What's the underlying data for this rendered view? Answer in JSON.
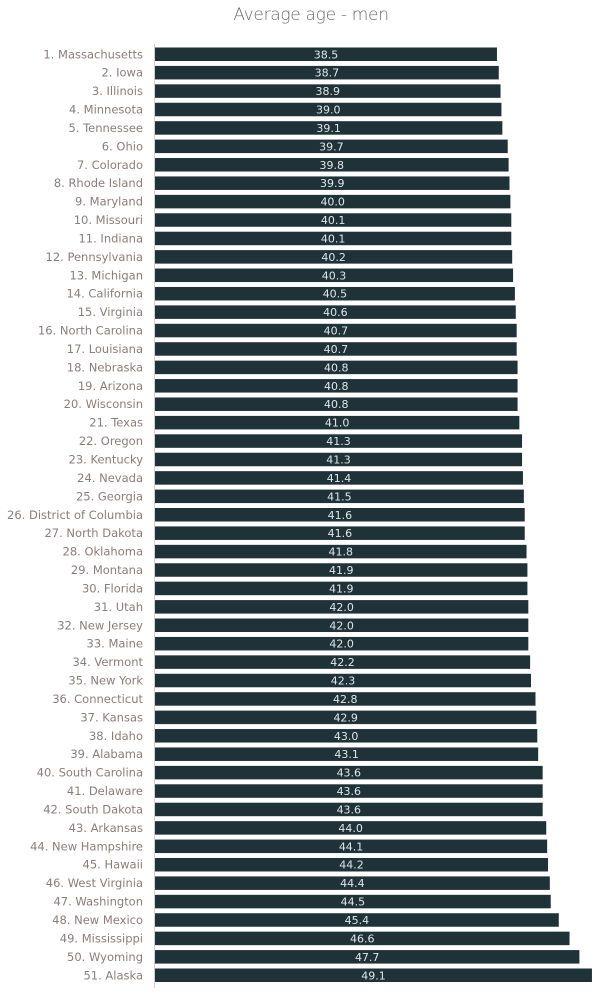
{
  "chart_data": {
    "type": "bar",
    "orientation": "horizontal",
    "title": "Average age - men",
    "xlabel": "",
    "ylabel": "",
    "grid": false,
    "bar_color": "#1e3238",
    "categories": [
      "1. Massachusetts",
      "2. Iowa",
      "3. Illinois",
      "4. Minnesota",
      "5. Tennessee",
      "6. Ohio",
      "7. Colorado",
      "8. Rhode Island",
      "9. Maryland",
      "10. Missouri",
      "11. Indiana",
      "12. Pennsylvania",
      "13. Michigan",
      "14. California",
      "15. Virginia",
      "16. North Carolina",
      "17. Louisiana",
      "18. Nebraska",
      "19. Arizona",
      "20. Wisconsin",
      "21. Texas",
      "22. Oregon",
      "23. Kentucky",
      "24. Nevada",
      "25. Georgia",
      "26. District of Columbia",
      "27. North Dakota",
      "28. Oklahoma",
      "29. Montana",
      "30. Florida",
      "31. Utah",
      "32. New Jersey",
      "33. Maine",
      "34. Vermont",
      "35. New York",
      "36. Connecticut",
      "37. Kansas",
      "38. Idaho",
      "39. Alabama",
      "40. South Carolina",
      "41. Delaware",
      "42. South Dakota",
      "43. Arkansas",
      "44. New Hampshire",
      "45. Hawaii",
      "46. West Virginia",
      "47. Washington",
      "48. New Mexico",
      "49. Mississippi",
      "50. Wyoming",
      "51. Alaska"
    ],
    "values": [
      38.5,
      38.7,
      38.9,
      39.0,
      39.1,
      39.7,
      39.8,
      39.9,
      40.0,
      40.1,
      40.1,
      40.2,
      40.3,
      40.5,
      40.6,
      40.7,
      40.7,
      40.8,
      40.8,
      40.8,
      41.0,
      41.3,
      41.3,
      41.4,
      41.5,
      41.6,
      41.6,
      41.8,
      41.9,
      41.9,
      42.0,
      42.0,
      42.0,
      42.2,
      42.3,
      42.8,
      42.9,
      43.0,
      43.1,
      43.6,
      43.6,
      43.6,
      44.0,
      44.1,
      44.2,
      44.4,
      44.5,
      45.4,
      46.6,
      47.7,
      49.1
    ]
  }
}
